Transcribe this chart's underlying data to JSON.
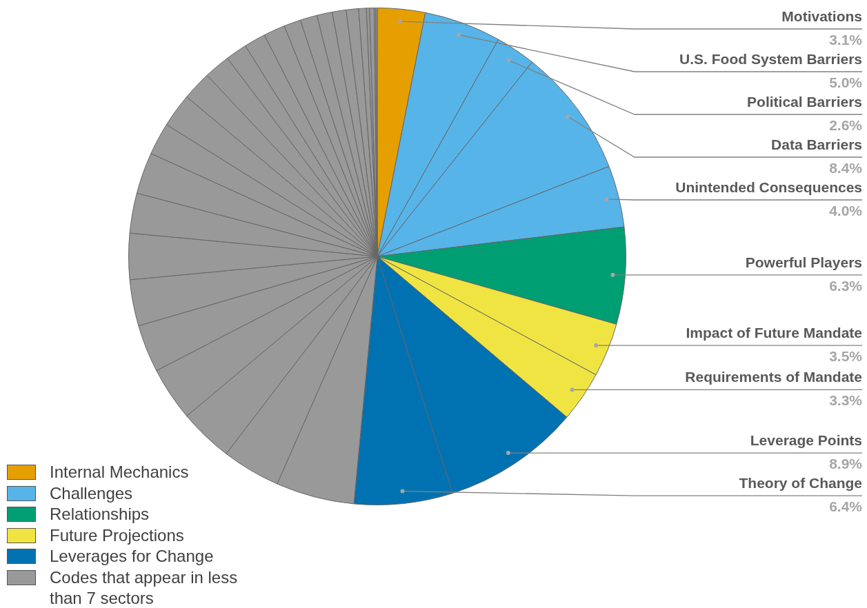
{
  "chart_data": {
    "type": "pie",
    "categories": [
      "Motivations",
      "U.S. Food System Barriers",
      "Political Barriers",
      "Data Barriers",
      "Unintended Consequences",
      "Powerful Players",
      "Impact of Future Mandate",
      "Requirements of Mandate",
      "Leverage Points",
      "Theory of Change",
      null,
      null,
      null,
      null,
      null,
      null,
      null,
      null,
      null,
      null,
      null,
      null,
      null,
      null,
      null,
      null,
      null,
      null,
      null,
      null,
      null,
      null,
      null,
      null,
      null,
      null
    ],
    "values": [
      3.1,
      5.0,
      2.6,
      8.4,
      4.0,
      6.3,
      3.5,
      3.3,
      8.9,
      6.4,
      5.1,
      3.8,
      3.5,
      3.5,
      3.1,
      3.0,
      3.0,
      2.6,
      2.7,
      2.1,
      2.2,
      1.9,
      1.7,
      1.4,
      1.4,
      1.4,
      1.1,
      1.1,
      1.0,
      0.9,
      0.8,
      0.5,
      0.2,
      0.3,
      0.1,
      0.1
    ],
    "value_labels": [
      "3.1%",
      "5.0%",
      "2.6%",
      "8.4%",
      "4.0%",
      "6.3%",
      "3.5%",
      "3.3%",
      "8.9%",
      "6.4%",
      null,
      null,
      null,
      null,
      null,
      null,
      null,
      null,
      null,
      null,
      null,
      null,
      null,
      null,
      null,
      null,
      null,
      null,
      null,
      null,
      null,
      null,
      null,
      null,
      null,
      null
    ],
    "colors": [
      "#e69f00",
      "#56b4e9",
      "#56b4e9",
      "#56b4e9",
      "#56b4e9",
      "#009e73",
      "#f0e442",
      "#f0e442",
      "#0072b2",
      "#0072b2",
      "#999999",
      "#999999",
      "#999999",
      "#999999",
      "#999999",
      "#999999",
      "#999999",
      "#999999",
      "#999999",
      "#999999",
      "#999999",
      "#999999",
      "#999999",
      "#999999",
      "#999999",
      "#999999",
      "#999999",
      "#999999",
      "#999999",
      "#999999",
      "#999999",
      "#999999",
      "#999999",
      "#999999",
      "#999999",
      "#999999"
    ],
    "annotations": [
      "Internal Mechanics",
      "Challenges",
      "Relationships",
      "Future Projections",
      "Leverages for Change",
      "Codes that appear in less than 7 sectors"
    ]
  }
}
